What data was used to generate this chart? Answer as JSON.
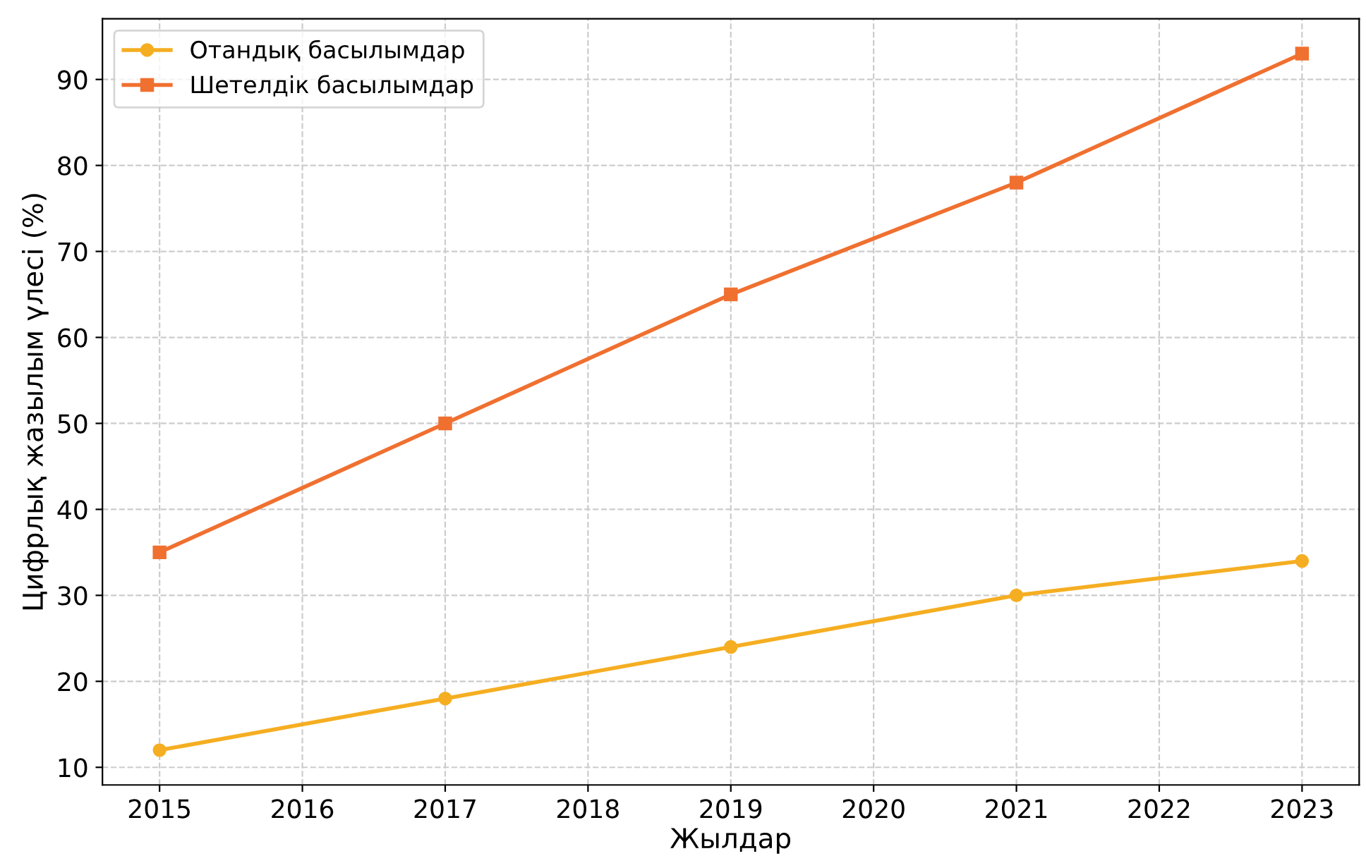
{
  "chart_data": {
    "type": "line",
    "xlabel": "Жылдар",
    "ylabel": "Цифрлық жазылым үлесі (%)",
    "x": [
      2015,
      2017,
      2019,
      2021,
      2023
    ],
    "series": [
      {
        "name": "Отандық басылымдар",
        "color": "#f5ae22",
        "values": [
          12,
          18,
          24,
          30,
          34
        ],
        "marker": "circle"
      },
      {
        "name": "Шетелдік басылымдар",
        "color": "#f07030",
        "values": [
          35,
          50,
          65,
          78,
          93
        ],
        "marker": "square"
      }
    ],
    "xlim": [
      2014.6,
      2023.4
    ],
    "xticks": [
      2015,
      2016,
      2017,
      2018,
      2019,
      2020,
      2021,
      2022,
      2023
    ],
    "ylim": [
      7.95,
      97.05
    ],
    "yticks": [
      10,
      20,
      30,
      40,
      50,
      60,
      70,
      80,
      90
    ],
    "grid": true,
    "legend": "top left",
    "line_style": "solid"
  }
}
